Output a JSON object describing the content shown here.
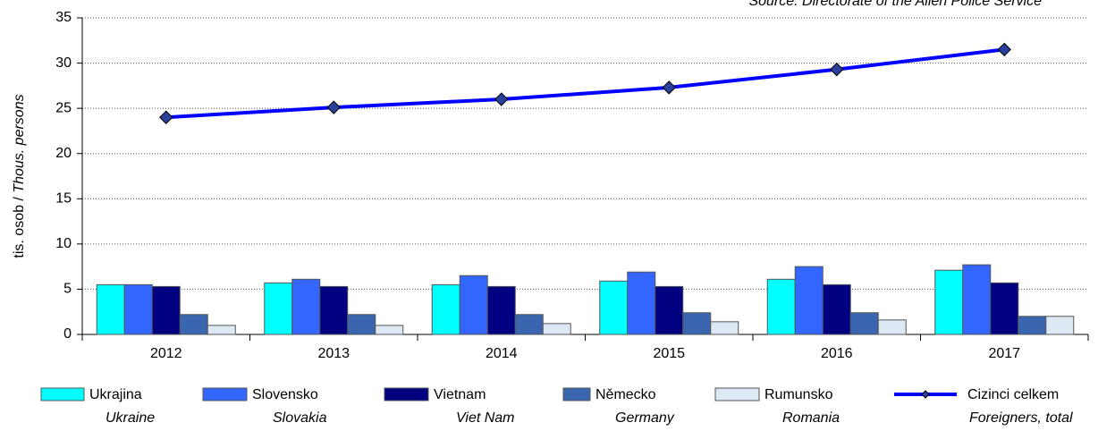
{
  "chart_data": {
    "type": "bar",
    "source": "Source: Directorate of the Alien Police Service",
    "ylabel_cz": "tis. osob / ",
    "ylabel_en": "Thous. persons",
    "categories": [
      "2012",
      "2013",
      "2014",
      "2015",
      "2016",
      "2017"
    ],
    "series": [
      {
        "name": "Ukrajina",
        "name_en": "Ukraine",
        "color": "#00ffff",
        "values": [
          5.5,
          5.7,
          5.5,
          5.9,
          6.1,
          7.1
        ]
      },
      {
        "name": "Slovensko",
        "name_en": "Slovakia",
        "color": "#3366ff",
        "values": [
          5.5,
          6.1,
          6.5,
          6.9,
          7.5,
          7.7
        ]
      },
      {
        "name": "Vietnam",
        "name_en": "Viet Nam",
        "color": "#000080",
        "values": [
          5.3,
          5.3,
          5.3,
          5.3,
          5.5,
          5.7
        ]
      },
      {
        "name": "Německo",
        "name_en": "Germany",
        "color": "#3a66b0",
        "values": [
          2.2,
          2.2,
          2.2,
          2.4,
          2.4,
          2.0
        ]
      },
      {
        "name": "Rumunsko",
        "name_en": "Romania",
        "color": "#dde8f5",
        "values": [
          1.0,
          1.0,
          1.2,
          1.4,
          1.6,
          2.0
        ]
      },
      {
        "name": "Cizinci celkem",
        "name_en": "Foreigners, total",
        "color": "#0000ff",
        "type": "line",
        "values": [
          24.0,
          25.1,
          26.0,
          27.3,
          29.3,
          31.5
        ]
      }
    ],
    "ylim": [
      0,
      35
    ],
    "yticks": [
      0,
      5,
      10,
      15,
      20,
      25,
      30,
      35
    ],
    "grid": true
  }
}
